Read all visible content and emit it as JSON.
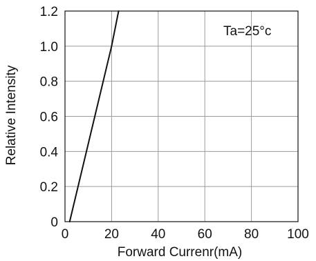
{
  "chart_data": {
    "type": "line",
    "annotation": "Ta=25°c",
    "xlabel": "Forward Currenr(mA)",
    "ylabel": "Relative Intensity",
    "xlim": [
      0,
      100
    ],
    "ylim": [
      0,
      1.2
    ],
    "x_ticks": [
      0,
      20,
      40,
      60,
      80,
      100
    ],
    "x_tick_labels": [
      "0",
      "20",
      "40",
      "60",
      "80",
      "100"
    ],
    "y_ticks": [
      0,
      0.2,
      0.4,
      0.6,
      0.8,
      1.0,
      1.2
    ],
    "y_tick_labels": [
      "0",
      "0.2",
      "0.4",
      "0.6",
      "0.8",
      "1.0",
      "1.2"
    ],
    "grid": true,
    "series": [
      {
        "x": [
          2,
          20,
          23
        ],
        "y": [
          0,
          1.0,
          1.2
        ],
        "color": "#111111"
      }
    ]
  }
}
